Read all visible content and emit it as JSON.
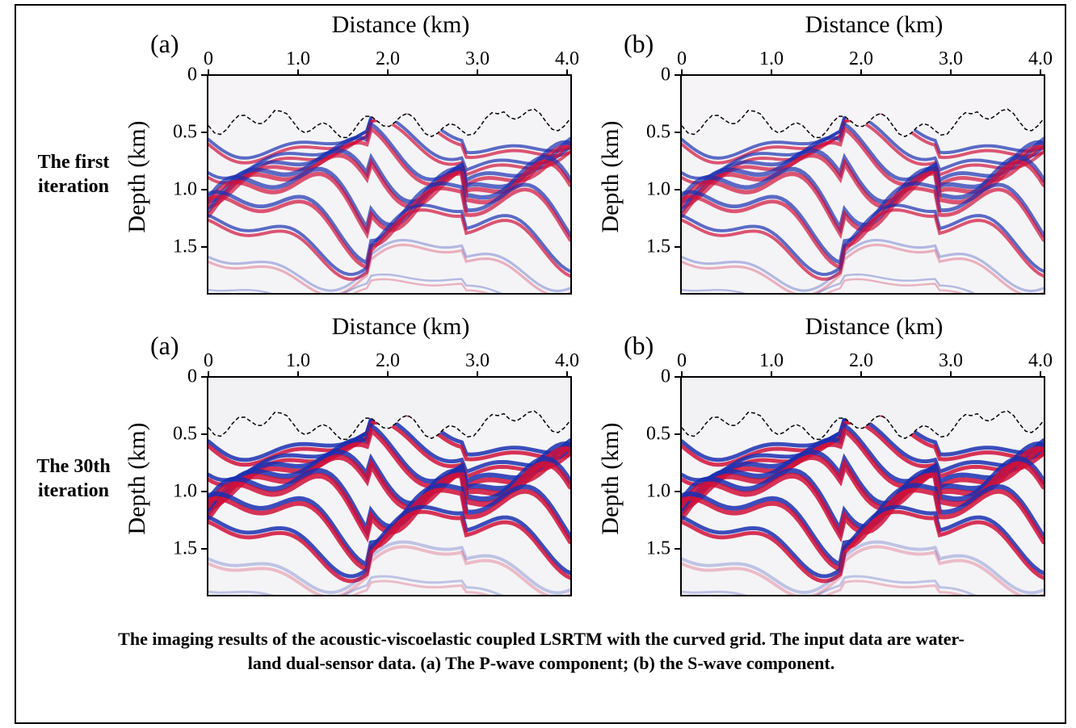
{
  "row_labels": {
    "first": [
      "The first",
      "iteration"
    ],
    "thirtieth": [
      "The 30th",
      "iteration"
    ]
  },
  "panels": [
    {
      "letter": "(a)",
      "xlabel": "Distance (km)",
      "ylabel": "Depth (km)",
      "component": "P-wave",
      "iteration": "first"
    },
    {
      "letter": "(b)",
      "xlabel": "Distance (km)",
      "ylabel": "Depth (km)",
      "component": "S-wave",
      "iteration": "first"
    },
    {
      "letter": "(a)",
      "xlabel": "Distance (km)",
      "ylabel": "Depth (km)",
      "component": "P-wave",
      "iteration": "30th"
    },
    {
      "letter": "(b)",
      "xlabel": "Distance (km)",
      "ylabel": "Depth (km)",
      "component": "S-wave",
      "iteration": "30th"
    }
  ],
  "x_ticks": [
    "0",
    "1.0",
    "2.0",
    "3.0",
    "4.0"
  ],
  "y_ticks": [
    "0",
    "0.5",
    "1.0",
    "1.5"
  ],
  "colors": {
    "positive": "#d0103a",
    "negative": "#1a2fb0",
    "background": "#f4f4f6"
  },
  "caption": "The imaging results of the acoustic-viscoelastic coupled LSRTM with the curved grid. The input data are water-land dual-sensor data. (a) The P-wave component; (b) the S-wave component."
}
